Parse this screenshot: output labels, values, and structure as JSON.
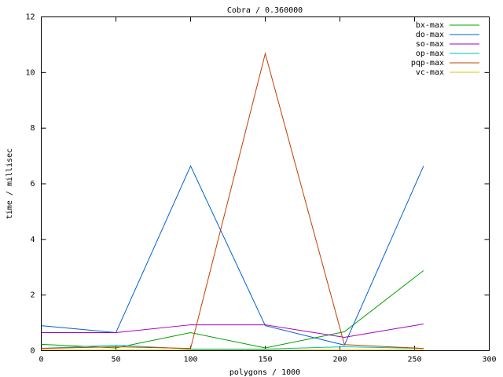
{
  "chart_data": {
    "type": "line",
    "title": "Cobra / 0.360000",
    "x_label": "polygons / 1000",
    "y_label": "time / millisec",
    "x": [
      0,
      50,
      100,
      150,
      203,
      256
    ],
    "series": [
      {
        "name": "bx-max",
        "color": "#00a000",
        "values": [
          0.23,
          0.1,
          0.65,
          0.1,
          0.68,
          2.88
        ]
      },
      {
        "name": "do-max",
        "color": "#0060d0",
        "values": [
          0.9,
          0.65,
          6.64,
          0.9,
          0.2,
          6.64
        ]
      },
      {
        "name": "so-max",
        "color": "#a000c0",
        "values": [
          0.65,
          0.65,
          0.93,
          0.93,
          0.48,
          0.96
        ]
      },
      {
        "name": "op-max",
        "color": "#00c0c0",
        "values": [
          0.08,
          0.2,
          0.06,
          0.06,
          0.14,
          0.08
        ]
      },
      {
        "name": "pqp-max",
        "color": "#c04000",
        "values": [
          0.08,
          0.14,
          0.08,
          10.68,
          0.22,
          0.08
        ]
      },
      {
        "name": "vc-max",
        "color": "#e0c000",
        "values": [
          0.03,
          0.03,
          0.03,
          0.03,
          0.05,
          0.03
        ]
      }
    ],
    "xlim": [
      0,
      300
    ],
    "xticks": [
      0,
      50,
      100,
      150,
      200,
      250,
      300
    ],
    "ylim": [
      0,
      12
    ],
    "yticks": [
      0,
      2,
      4,
      6,
      8,
      10,
      12
    ],
    "grid": false,
    "legend": "top-right"
  }
}
